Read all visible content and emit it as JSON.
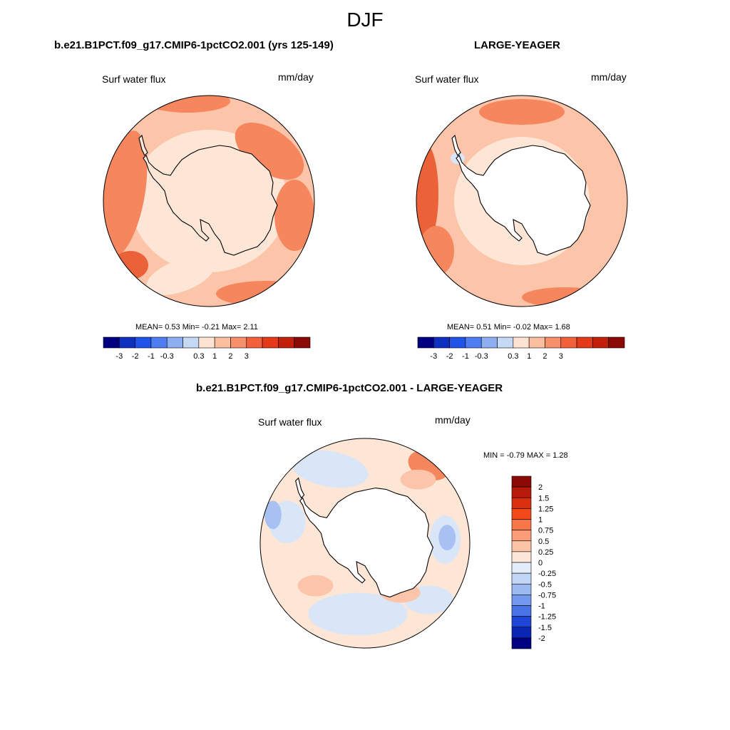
{
  "page": {
    "title": "DJF"
  },
  "palette": {
    "colors_12": [
      "#000080",
      "#0f2fbf",
      "#1f54e6",
      "#4f7ef2",
      "#8eaef2",
      "#c5d8f4",
      "#fde4d2",
      "#fbbfa0",
      "#f7906a",
      "#f2603c",
      "#e33a1a",
      "#c0200c",
      "#8a0a06"
    ],
    "ocean": {
      "light": "#fde6d6",
      "mid": "#fcc4a8",
      "dark": "#f5865e",
      "deep": "#eb6238",
      "neg_light": "#d9e6f8",
      "neg_mid": "#a8c1f2",
      "neg_dark": "#6d94ec"
    },
    "land_white": "#ffffff"
  },
  "panel_left": {
    "title": "b.e21.B1PCT.f09_g17.CMIP6-1pctCO2.001 (yrs 125-149)",
    "var_label": "Surf water flux",
    "units": "mm/day",
    "stats": "MEAN=   0.53  Min=  -0.21  Max=   2.11",
    "colorbar_ticks": [
      "-3",
      "-2",
      "-1",
      "-0.3",
      "0.3",
      "1",
      "2",
      "3"
    ]
  },
  "panel_right": {
    "title": "LARGE-YEAGER",
    "var_label": "Surf water flux",
    "units": "mm/day",
    "stats": "MEAN=   0.51  Min=  -0.02  Max=   1.68",
    "colorbar_ticks": [
      "-3",
      "-2",
      "-1",
      "-0.3",
      "0.3",
      "1",
      "2",
      "3"
    ]
  },
  "panel_diff": {
    "title": "b.e21.B1PCT.f09_g17.CMIP6-1pctCO2.001 - LARGE-YEAGER",
    "var_label": "Surf water flux",
    "units": "mm/day",
    "stats": "MIN =  -0.79 MAX =   1.28",
    "colorbar_ticks": [
      "2",
      "1.5",
      "1.25",
      "1",
      "0.75",
      "0.5",
      "0.25",
      "0",
      "-0.25",
      "-0.5",
      "-0.75",
      "-1",
      "-1.25",
      "-1.5",
      "-2"
    ],
    "colorbar_colors": [
      "#8a0a06",
      "#b81a0a",
      "#dc2f10",
      "#f24a1a",
      "#f7774a",
      "#fa9c78",
      "#fcc4a6",
      "#fde7d8",
      "#e4eefa",
      "#c2d6f6",
      "#9cbaf2",
      "#7399ee",
      "#4a73e6",
      "#2046d8",
      "#0a26b4",
      "#000080"
    ]
  }
}
